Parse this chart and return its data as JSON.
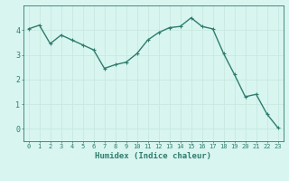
{
  "x": [
    0,
    1,
    2,
    3,
    4,
    5,
    6,
    7,
    8,
    9,
    10,
    11,
    12,
    13,
    14,
    15,
    16,
    17,
    18,
    19,
    20,
    21,
    22,
    23
  ],
  "y": [
    4.05,
    4.2,
    3.45,
    3.8,
    3.6,
    3.4,
    3.2,
    2.45,
    2.6,
    2.7,
    3.05,
    3.6,
    3.9,
    4.1,
    4.15,
    4.5,
    4.15,
    4.05,
    3.05,
    2.2,
    1.3,
    1.4,
    0.6,
    0.05
  ],
  "line_color": "#2e7d6e",
  "marker": "+",
  "marker_size": 3,
  "bg_color": "#d8f5f0",
  "grid_color": "#c8e8e0",
  "xlabel": "Humidex (Indice chaleur)",
  "xlim": [
    -0.5,
    23.5
  ],
  "ylim": [
    -0.5,
    5.0
  ],
  "yticks": [
    0,
    1,
    2,
    3,
    4
  ],
  "xticks": [
    0,
    1,
    2,
    3,
    4,
    5,
    6,
    7,
    8,
    9,
    10,
    11,
    12,
    13,
    14,
    15,
    16,
    17,
    18,
    19,
    20,
    21,
    22,
    23
  ],
  "tick_color": "#2e7d6e",
  "label_color": "#2e7d6e",
  "axis_color": "#2e7d6e",
  "xlabel_fontsize": 6.5,
  "tick_fontsize": 5,
  "linewidth": 1.0,
  "marker_linewidth": 0.8
}
